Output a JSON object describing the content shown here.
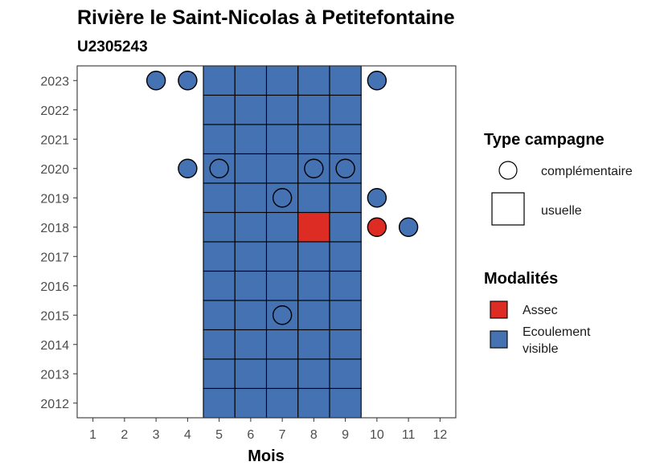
{
  "chart_data": {
    "type": "heatmap",
    "title": "Rivière le Saint-Nicolas à Petitefontaine",
    "subtitle": "U2305243",
    "xlabel": "Mois",
    "ylabel": "",
    "x_ticks": [
      1,
      2,
      3,
      4,
      5,
      6,
      7,
      8,
      9,
      10,
      11,
      12
    ],
    "y_ticks": [
      2012,
      2013,
      2014,
      2015,
      2016,
      2017,
      2018,
      2019,
      2020,
      2021,
      2022,
      2023
    ],
    "xlim": [
      0.5,
      12.5
    ],
    "ylim": [
      2011.5,
      2023.5
    ],
    "colors": {
      "Assec": "#dd2c24",
      "Ecoulement visible": "#4472b2"
    },
    "usuelle": [
      {
        "year": 2023,
        "months": [
          5,
          6,
          7,
          8,
          9
        ],
        "modalite": "Ecoulement visible"
      },
      {
        "year": 2022,
        "months": [
          5,
          6,
          7,
          8,
          9
        ],
        "modalite": "Ecoulement visible"
      },
      {
        "year": 2021,
        "months": [
          5,
          6,
          7,
          8,
          9
        ],
        "modalite": "Ecoulement visible"
      },
      {
        "year": 2020,
        "months": [
          5,
          6,
          7,
          8,
          9
        ],
        "modalite": "Ecoulement visible"
      },
      {
        "year": 2019,
        "months": [
          5,
          6,
          7,
          8,
          9
        ],
        "modalite": "Ecoulement visible"
      },
      {
        "year": 2018,
        "months": [
          5,
          6,
          7,
          9
        ],
        "modalite": "Ecoulement visible"
      },
      {
        "year": 2018,
        "months": [
          8
        ],
        "modalite": "Assec"
      },
      {
        "year": 2017,
        "months": [
          5,
          6,
          7,
          8,
          9
        ],
        "modalite": "Ecoulement visible"
      },
      {
        "year": 2016,
        "months": [
          5,
          6,
          7,
          8,
          9
        ],
        "modalite": "Ecoulement visible"
      },
      {
        "year": 2015,
        "months": [
          5,
          6,
          7,
          8,
          9
        ],
        "modalite": "Ecoulement visible"
      },
      {
        "year": 2014,
        "months": [
          5,
          6,
          7,
          8,
          9
        ],
        "modalite": "Ecoulement visible"
      },
      {
        "year": 2013,
        "months": [
          5,
          6,
          7,
          8,
          9
        ],
        "modalite": "Ecoulement visible"
      },
      {
        "year": 2012,
        "months": [
          5,
          6,
          7,
          8,
          9
        ],
        "modalite": "Ecoulement visible"
      }
    ],
    "complementaire": [
      {
        "year": 2023,
        "month": 3,
        "modalite": "Ecoulement visible"
      },
      {
        "year": 2023,
        "month": 4,
        "modalite": "Ecoulement visible"
      },
      {
        "year": 2023,
        "month": 10,
        "modalite": "Ecoulement visible"
      },
      {
        "year": 2020,
        "month": 4,
        "modalite": "Ecoulement visible"
      },
      {
        "year": 2020,
        "month": 5,
        "modalite": "Ecoulement visible"
      },
      {
        "year": 2020,
        "month": 8,
        "modalite": "Ecoulement visible"
      },
      {
        "year": 2020,
        "month": 9,
        "modalite": "Ecoulement visible"
      },
      {
        "year": 2019,
        "month": 7,
        "modalite": "Ecoulement visible"
      },
      {
        "year": 2019,
        "month": 10,
        "modalite": "Ecoulement visible"
      },
      {
        "year": 2018,
        "month": 10,
        "modalite": "Assec"
      },
      {
        "year": 2018,
        "month": 11,
        "modalite": "Ecoulement visible"
      },
      {
        "year": 2015,
        "month": 7,
        "modalite": "Ecoulement visible"
      }
    ],
    "legend": {
      "position": "right",
      "type_title": "Type campagne",
      "type_items": [
        "complémentaire",
        "usuelle"
      ],
      "modalite_title": "Modalités",
      "modalite_items": [
        "Assec",
        "Ecoulement",
        "visible"
      ]
    }
  }
}
